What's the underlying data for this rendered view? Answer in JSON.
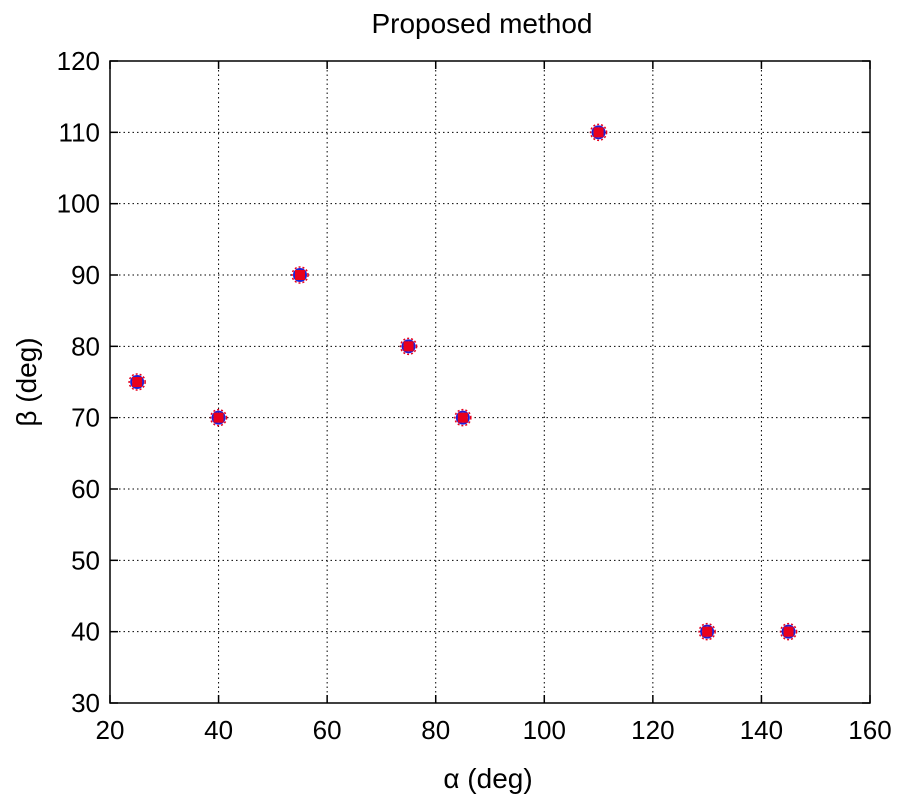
{
  "chart_data": {
    "type": "scatter",
    "title": "Proposed method",
    "xlabel": "α (deg)",
    "ylabel": "β (deg)",
    "xlim": [
      20,
      160
    ],
    "ylim": [
      30,
      120
    ],
    "x_ticks": [
      20,
      40,
      60,
      80,
      100,
      120,
      140,
      160
    ],
    "y_ticks": [
      30,
      40,
      50,
      60,
      70,
      80,
      90,
      100,
      110,
      120
    ],
    "grid": true,
    "legend": "none",
    "marker_colors": {
      "fill": "#e8001c",
      "outline": "#1f1fd6"
    },
    "points": [
      {
        "x": 25,
        "y": 75
      },
      {
        "x": 40,
        "y": 70
      },
      {
        "x": 55,
        "y": 90
      },
      {
        "x": 75,
        "y": 80
      },
      {
        "x": 85,
        "y": 70
      },
      {
        "x": 110,
        "y": 110
      },
      {
        "x": 130,
        "y": 40
      },
      {
        "x": 145,
        "y": 40
      }
    ]
  }
}
